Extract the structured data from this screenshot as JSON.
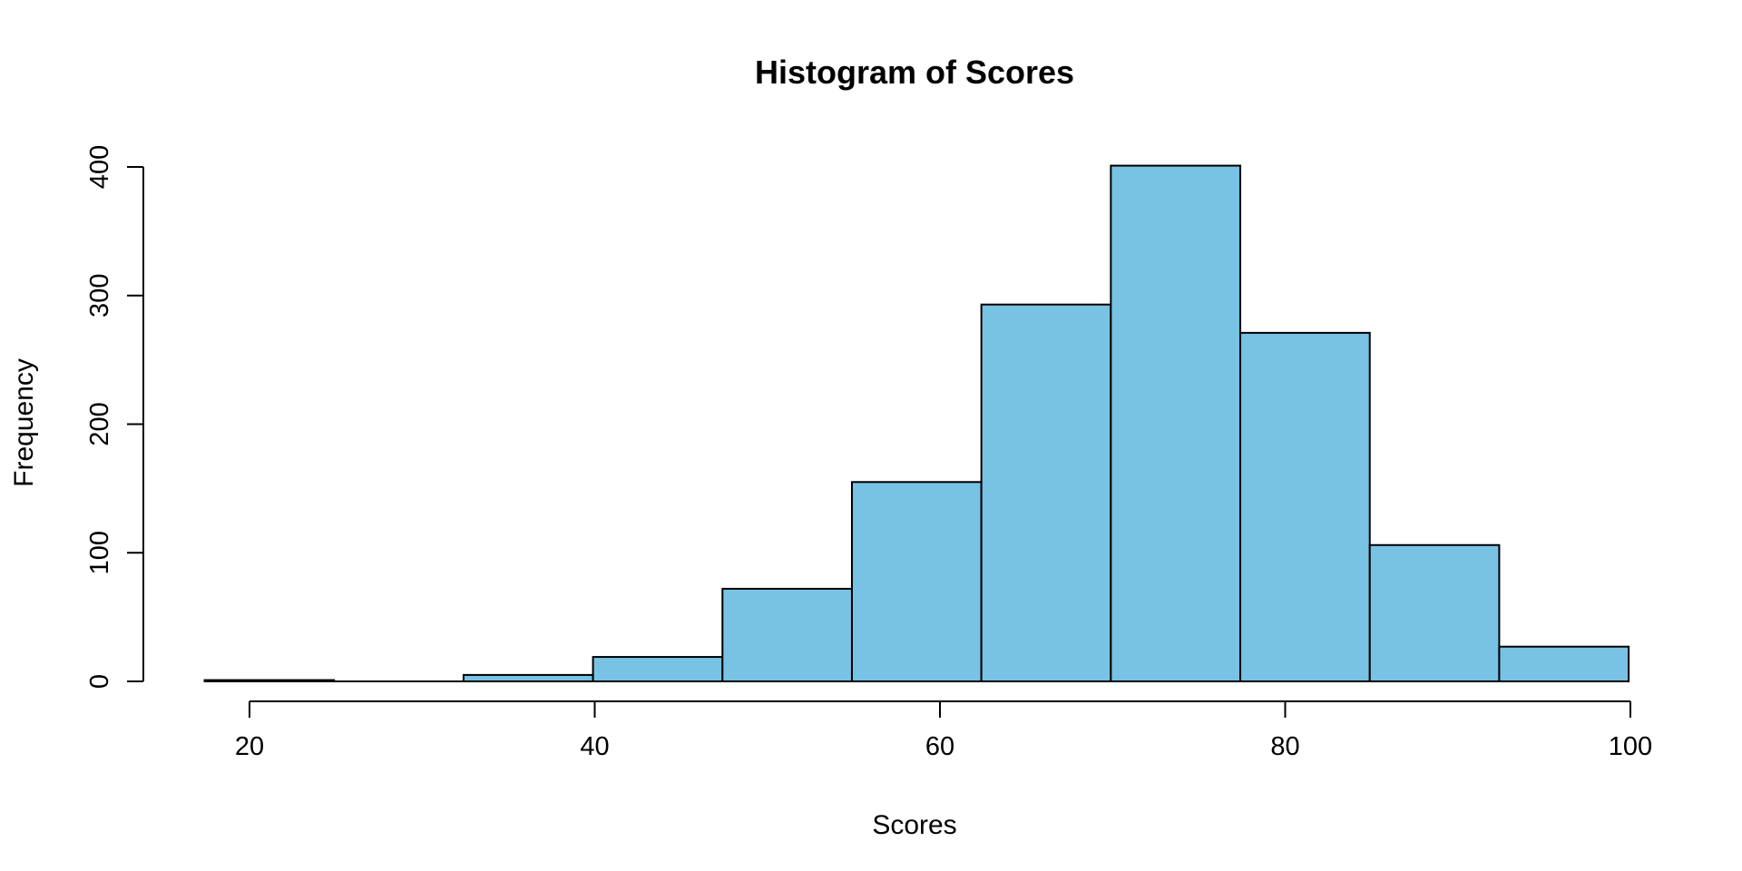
{
  "chart_data": {
    "type": "bar",
    "title": "Histogram of Scores",
    "xlabel": "Scores",
    "ylabel": "Frequency",
    "bar_color": "#78C2E4",
    "edge_color": "#000000",
    "bins": [
      {
        "start": 17.4,
        "end": 24.9,
        "count": 1
      },
      {
        "start": 24.9,
        "end": 32.4,
        "count": 0
      },
      {
        "start": 32.4,
        "end": 39.9,
        "count": 5
      },
      {
        "start": 39.9,
        "end": 47.4,
        "count": 19
      },
      {
        "start": 47.4,
        "end": 54.9,
        "count": 72
      },
      {
        "start": 54.9,
        "end": 62.4,
        "count": 155
      },
      {
        "start": 62.4,
        "end": 69.9,
        "count": 293
      },
      {
        "start": 69.9,
        "end": 77.4,
        "count": 401
      },
      {
        "start": 77.4,
        "end": 84.9,
        "count": 271
      },
      {
        "start": 84.9,
        "end": 92.4,
        "count": 106
      },
      {
        "start": 92.4,
        "end": 99.9,
        "count": 27
      }
    ],
    "xlim": [
      20,
      100
    ],
    "ylim": [
      0,
      400
    ],
    "x_ticks": [
      "20",
      "40",
      "60",
      "80",
      "100"
    ],
    "y_ticks": [
      "0",
      "100",
      "200",
      "300",
      "400"
    ],
    "grid": false
  }
}
